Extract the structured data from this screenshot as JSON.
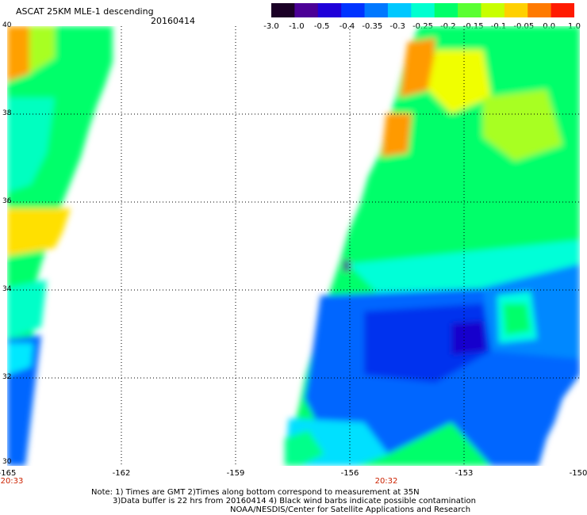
{
  "title": "ASCAT 25KM MLE-1 descending",
  "date": "20160414",
  "colorbar": {
    "labels": [
      "-3.0",
      "-1.0",
      "-0.5",
      "-0.4",
      "-0.35",
      "-0.3",
      "-0.25",
      "-0.2",
      "-0.15",
      "-0.1",
      "-0.05",
      "0.0",
      "1.0"
    ],
    "colors": [
      "#1a0026",
      "#4b0096",
      "#1f00d9",
      "#0033ff",
      "#0078ff",
      "#00c8ff",
      "#00ffd0",
      "#00ff6a",
      "#5aff32",
      "#c8ff00",
      "#ffd000",
      "#ff7a00",
      "#ff1a00"
    ]
  },
  "axes": {
    "x_ticks": [
      "-165",
      "-162",
      "-159",
      "-156",
      "-153",
      "-150"
    ],
    "y_ticks": [
      "40",
      "38",
      "36",
      "34",
      "32",
      "30"
    ]
  },
  "times": [
    "20:33",
    "20:32"
  ],
  "notes": [
    "Note: 1) Times are GMT 2)Times along bottom correspond to measurement at 35N",
    "3)Data buffer is 22 hrs from 20160414 4) Black wind barbs indicate possible contamination",
    "NOAA/NESDIS/Center for Satellite Applications and Research"
  ]
}
